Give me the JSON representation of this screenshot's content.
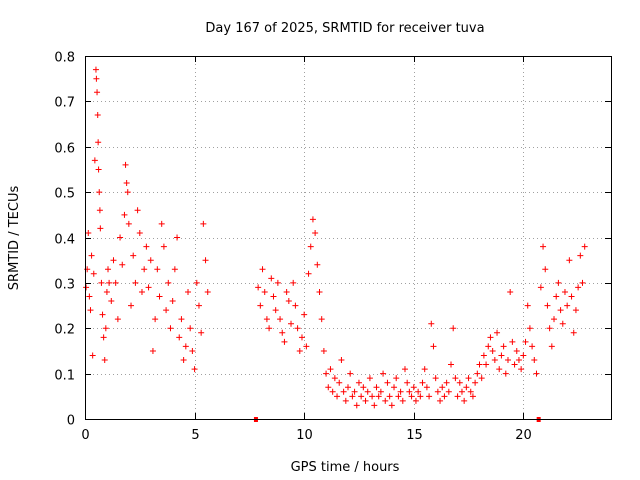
{
  "chart_data": {
    "type": "scatter",
    "title": "Day 167 of 2025, SRMTID for receiver tuva",
    "xlabel": "GPS time / hours",
    "ylabel": "SRMTID / TECUs",
    "xlim": [
      0,
      24
    ],
    "ylim": [
      0,
      0.8
    ],
    "xticks": [
      0,
      5,
      10,
      15,
      20
    ],
    "xtick_labels": [
      "0",
      "5",
      "10",
      "15",
      "20"
    ],
    "yticks": [
      0,
      0.1,
      0.2,
      0.3,
      0.4,
      0.5,
      0.6,
      0.7,
      0.8
    ],
    "ytick_labels": [
      "0",
      "0.1",
      "0.2",
      "0.3",
      "0.4",
      "0.5",
      "0.6",
      "0.7",
      "0.8"
    ],
    "grid": true,
    "marker": "+",
    "color": "#ff0000",
    "gap_markers_x": [
      7.8,
      20.7
    ],
    "series": [
      {
        "name": "SRMTID",
        "points": [
          [
            0.05,
            0.29
          ],
          [
            0.1,
            0.33
          ],
          [
            0.15,
            0.41
          ],
          [
            0.2,
            0.27
          ],
          [
            0.25,
            0.24
          ],
          [
            0.3,
            0.36
          ],
          [
            0.35,
            0.14
          ],
          [
            0.4,
            0.32
          ],
          [
            0.45,
            0.57
          ],
          [
            0.5,
            0.77
          ],
          [
            0.52,
            0.75
          ],
          [
            0.55,
            0.72
          ],
          [
            0.58,
            0.67
          ],
          [
            0.6,
            0.61
          ],
          [
            0.62,
            0.55
          ],
          [
            0.65,
            0.5
          ],
          [
            0.68,
            0.46
          ],
          [
            0.7,
            0.42
          ],
          [
            0.75,
            0.3
          ],
          [
            0.8,
            0.23
          ],
          [
            0.85,
            0.18
          ],
          [
            0.9,
            0.13
          ],
          [
            0.95,
            0.2
          ],
          [
            1.0,
            0.28
          ],
          [
            1.05,
            0.33
          ],
          [
            1.1,
            0.3
          ],
          [
            1.2,
            0.26
          ],
          [
            1.3,
            0.35
          ],
          [
            1.4,
            0.3
          ],
          [
            1.5,
            0.22
          ],
          [
            1.6,
            0.4
          ],
          [
            1.7,
            0.34
          ],
          [
            1.8,
            0.45
          ],
          [
            1.85,
            0.56
          ],
          [
            1.9,
            0.52
          ],
          [
            1.95,
            0.5
          ],
          [
            2.0,
            0.43
          ],
          [
            2.1,
            0.25
          ],
          [
            2.2,
            0.36
          ],
          [
            2.3,
            0.3
          ],
          [
            2.4,
            0.46
          ],
          [
            2.5,
            0.41
          ],
          [
            2.6,
            0.28
          ],
          [
            2.7,
            0.33
          ],
          [
            2.8,
            0.38
          ],
          [
            2.9,
            0.29
          ],
          [
            3.0,
            0.35
          ],
          [
            3.1,
            0.15
          ],
          [
            3.2,
            0.22
          ],
          [
            3.3,
            0.33
          ],
          [
            3.4,
            0.27
          ],
          [
            3.5,
            0.43
          ],
          [
            3.6,
            0.38
          ],
          [
            3.7,
            0.24
          ],
          [
            3.8,
            0.3
          ],
          [
            3.9,
            0.2
          ],
          [
            4.0,
            0.26
          ],
          [
            4.1,
            0.33
          ],
          [
            4.2,
            0.4
          ],
          [
            4.3,
            0.18
          ],
          [
            4.4,
            0.22
          ],
          [
            4.5,
            0.13
          ],
          [
            4.6,
            0.16
          ],
          [
            4.7,
            0.28
          ],
          [
            4.8,
            0.2
          ],
          [
            4.9,
            0.15
          ],
          [
            5.0,
            0.11
          ],
          [
            5.1,
            0.3
          ],
          [
            5.2,
            0.25
          ],
          [
            5.3,
            0.19
          ],
          [
            5.4,
            0.43
          ],
          [
            5.5,
            0.35
          ],
          [
            5.6,
            0.28
          ],
          [
            7.9,
            0.29
          ],
          [
            8.0,
            0.25
          ],
          [
            8.1,
            0.33
          ],
          [
            8.2,
            0.28
          ],
          [
            8.3,
            0.22
          ],
          [
            8.4,
            0.2
          ],
          [
            8.5,
            0.31
          ],
          [
            8.6,
            0.27
          ],
          [
            8.7,
            0.24
          ],
          [
            8.8,
            0.3
          ],
          [
            8.9,
            0.22
          ],
          [
            9.0,
            0.19
          ],
          [
            9.1,
            0.17
          ],
          [
            9.2,
            0.28
          ],
          [
            9.3,
            0.26
          ],
          [
            9.4,
            0.21
          ],
          [
            9.5,
            0.3
          ],
          [
            9.6,
            0.25
          ],
          [
            9.7,
            0.2
          ],
          [
            9.8,
            0.15
          ],
          [
            9.9,
            0.18
          ],
          [
            10.0,
            0.23
          ],
          [
            10.1,
            0.16
          ],
          [
            10.2,
            0.32
          ],
          [
            10.3,
            0.38
          ],
          [
            10.4,
            0.44
          ],
          [
            10.5,
            0.41
          ],
          [
            10.6,
            0.34
          ],
          [
            10.7,
            0.28
          ],
          [
            10.8,
            0.22
          ],
          [
            10.9,
            0.15
          ],
          [
            11.0,
            0.1
          ],
          [
            11.1,
            0.07
          ],
          [
            11.2,
            0.11
          ],
          [
            11.3,
            0.06
          ],
          [
            11.4,
            0.09
          ],
          [
            11.5,
            0.05
          ],
          [
            11.6,
            0.08
          ],
          [
            11.7,
            0.13
          ],
          [
            11.8,
            0.06
          ],
          [
            11.9,
            0.04
          ],
          [
            12.0,
            0.07
          ],
          [
            12.1,
            0.1
          ],
          [
            12.2,
            0.05
          ],
          [
            12.3,
            0.06
          ],
          [
            12.4,
            0.03
          ],
          [
            12.5,
            0.08
          ],
          [
            12.6,
            0.05
          ],
          [
            12.7,
            0.07
          ],
          [
            12.8,
            0.04
          ],
          [
            12.9,
            0.06
          ],
          [
            13.0,
            0.09
          ],
          [
            13.1,
            0.05
          ],
          [
            13.2,
            0.03
          ],
          [
            13.3,
            0.07
          ],
          [
            13.4,
            0.05
          ],
          [
            13.5,
            0.06
          ],
          [
            13.6,
            0.1
          ],
          [
            13.7,
            0.04
          ],
          [
            13.8,
            0.08
          ],
          [
            13.9,
            0.05
          ],
          [
            14.0,
            0.03
          ],
          [
            14.1,
            0.07
          ],
          [
            14.2,
            0.09
          ],
          [
            14.3,
            0.05
          ],
          [
            14.4,
            0.06
          ],
          [
            14.5,
            0.04
          ],
          [
            14.6,
            0.11
          ],
          [
            14.7,
            0.08
          ],
          [
            14.8,
            0.06
          ],
          [
            14.9,
            0.05
          ],
          [
            15.0,
            0.07
          ],
          [
            15.1,
            0.04
          ],
          [
            15.2,
            0.06
          ],
          [
            15.3,
            0.05
          ],
          [
            15.4,
            0.08
          ],
          [
            15.5,
            0.11
          ],
          [
            15.6,
            0.07
          ],
          [
            15.7,
            0.05
          ],
          [
            15.8,
            0.21
          ],
          [
            15.9,
            0.16
          ],
          [
            16.0,
            0.09
          ],
          [
            16.1,
            0.06
          ],
          [
            16.2,
            0.04
          ],
          [
            16.3,
            0.07
          ],
          [
            16.4,
            0.05
          ],
          [
            16.5,
            0.08
          ],
          [
            16.6,
            0.06
          ],
          [
            16.7,
            0.12
          ],
          [
            16.8,
            0.2
          ],
          [
            16.9,
            0.09
          ],
          [
            17.0,
            0.05
          ],
          [
            17.1,
            0.08
          ],
          [
            17.2,
            0.06
          ],
          [
            17.3,
            0.04
          ],
          [
            17.4,
            0.07
          ],
          [
            17.5,
            0.09
          ],
          [
            17.6,
            0.06
          ],
          [
            17.7,
            0.05
          ],
          [
            17.8,
            0.08
          ],
          [
            17.9,
            0.1
          ],
          [
            18.0,
            0.12
          ],
          [
            18.1,
            0.09
          ],
          [
            18.2,
            0.14
          ],
          [
            18.3,
            0.12
          ],
          [
            18.4,
            0.16
          ],
          [
            18.5,
            0.18
          ],
          [
            18.6,
            0.15
          ],
          [
            18.7,
            0.13
          ],
          [
            18.8,
            0.19
          ],
          [
            18.9,
            0.11
          ],
          [
            19.0,
            0.14
          ],
          [
            19.1,
            0.16
          ],
          [
            19.2,
            0.1
          ],
          [
            19.3,
            0.13
          ],
          [
            19.4,
            0.28
          ],
          [
            19.5,
            0.17
          ],
          [
            19.6,
            0.12
          ],
          [
            19.7,
            0.15
          ],
          [
            19.8,
            0.13
          ],
          [
            19.9,
            0.11
          ],
          [
            20.0,
            0.14
          ],
          [
            20.1,
            0.17
          ],
          [
            20.2,
            0.25
          ],
          [
            20.3,
            0.2
          ],
          [
            20.4,
            0.16
          ],
          [
            20.5,
            0.13
          ],
          [
            20.6,
            0.1
          ],
          [
            20.8,
            0.29
          ],
          [
            20.9,
            0.38
          ],
          [
            21.0,
            0.33
          ],
          [
            21.1,
            0.25
          ],
          [
            21.2,
            0.2
          ],
          [
            21.3,
            0.16
          ],
          [
            21.4,
            0.22
          ],
          [
            21.5,
            0.27
          ],
          [
            21.6,
            0.3
          ],
          [
            21.7,
            0.24
          ],
          [
            21.8,
            0.21
          ],
          [
            21.9,
            0.28
          ],
          [
            22.0,
            0.25
          ],
          [
            22.1,
            0.35
          ],
          [
            22.2,
            0.27
          ],
          [
            22.3,
            0.19
          ],
          [
            22.4,
            0.24
          ],
          [
            22.5,
            0.29
          ],
          [
            22.6,
            0.36
          ],
          [
            22.7,
            0.3
          ],
          [
            22.8,
            0.38
          ]
        ]
      }
    ]
  }
}
